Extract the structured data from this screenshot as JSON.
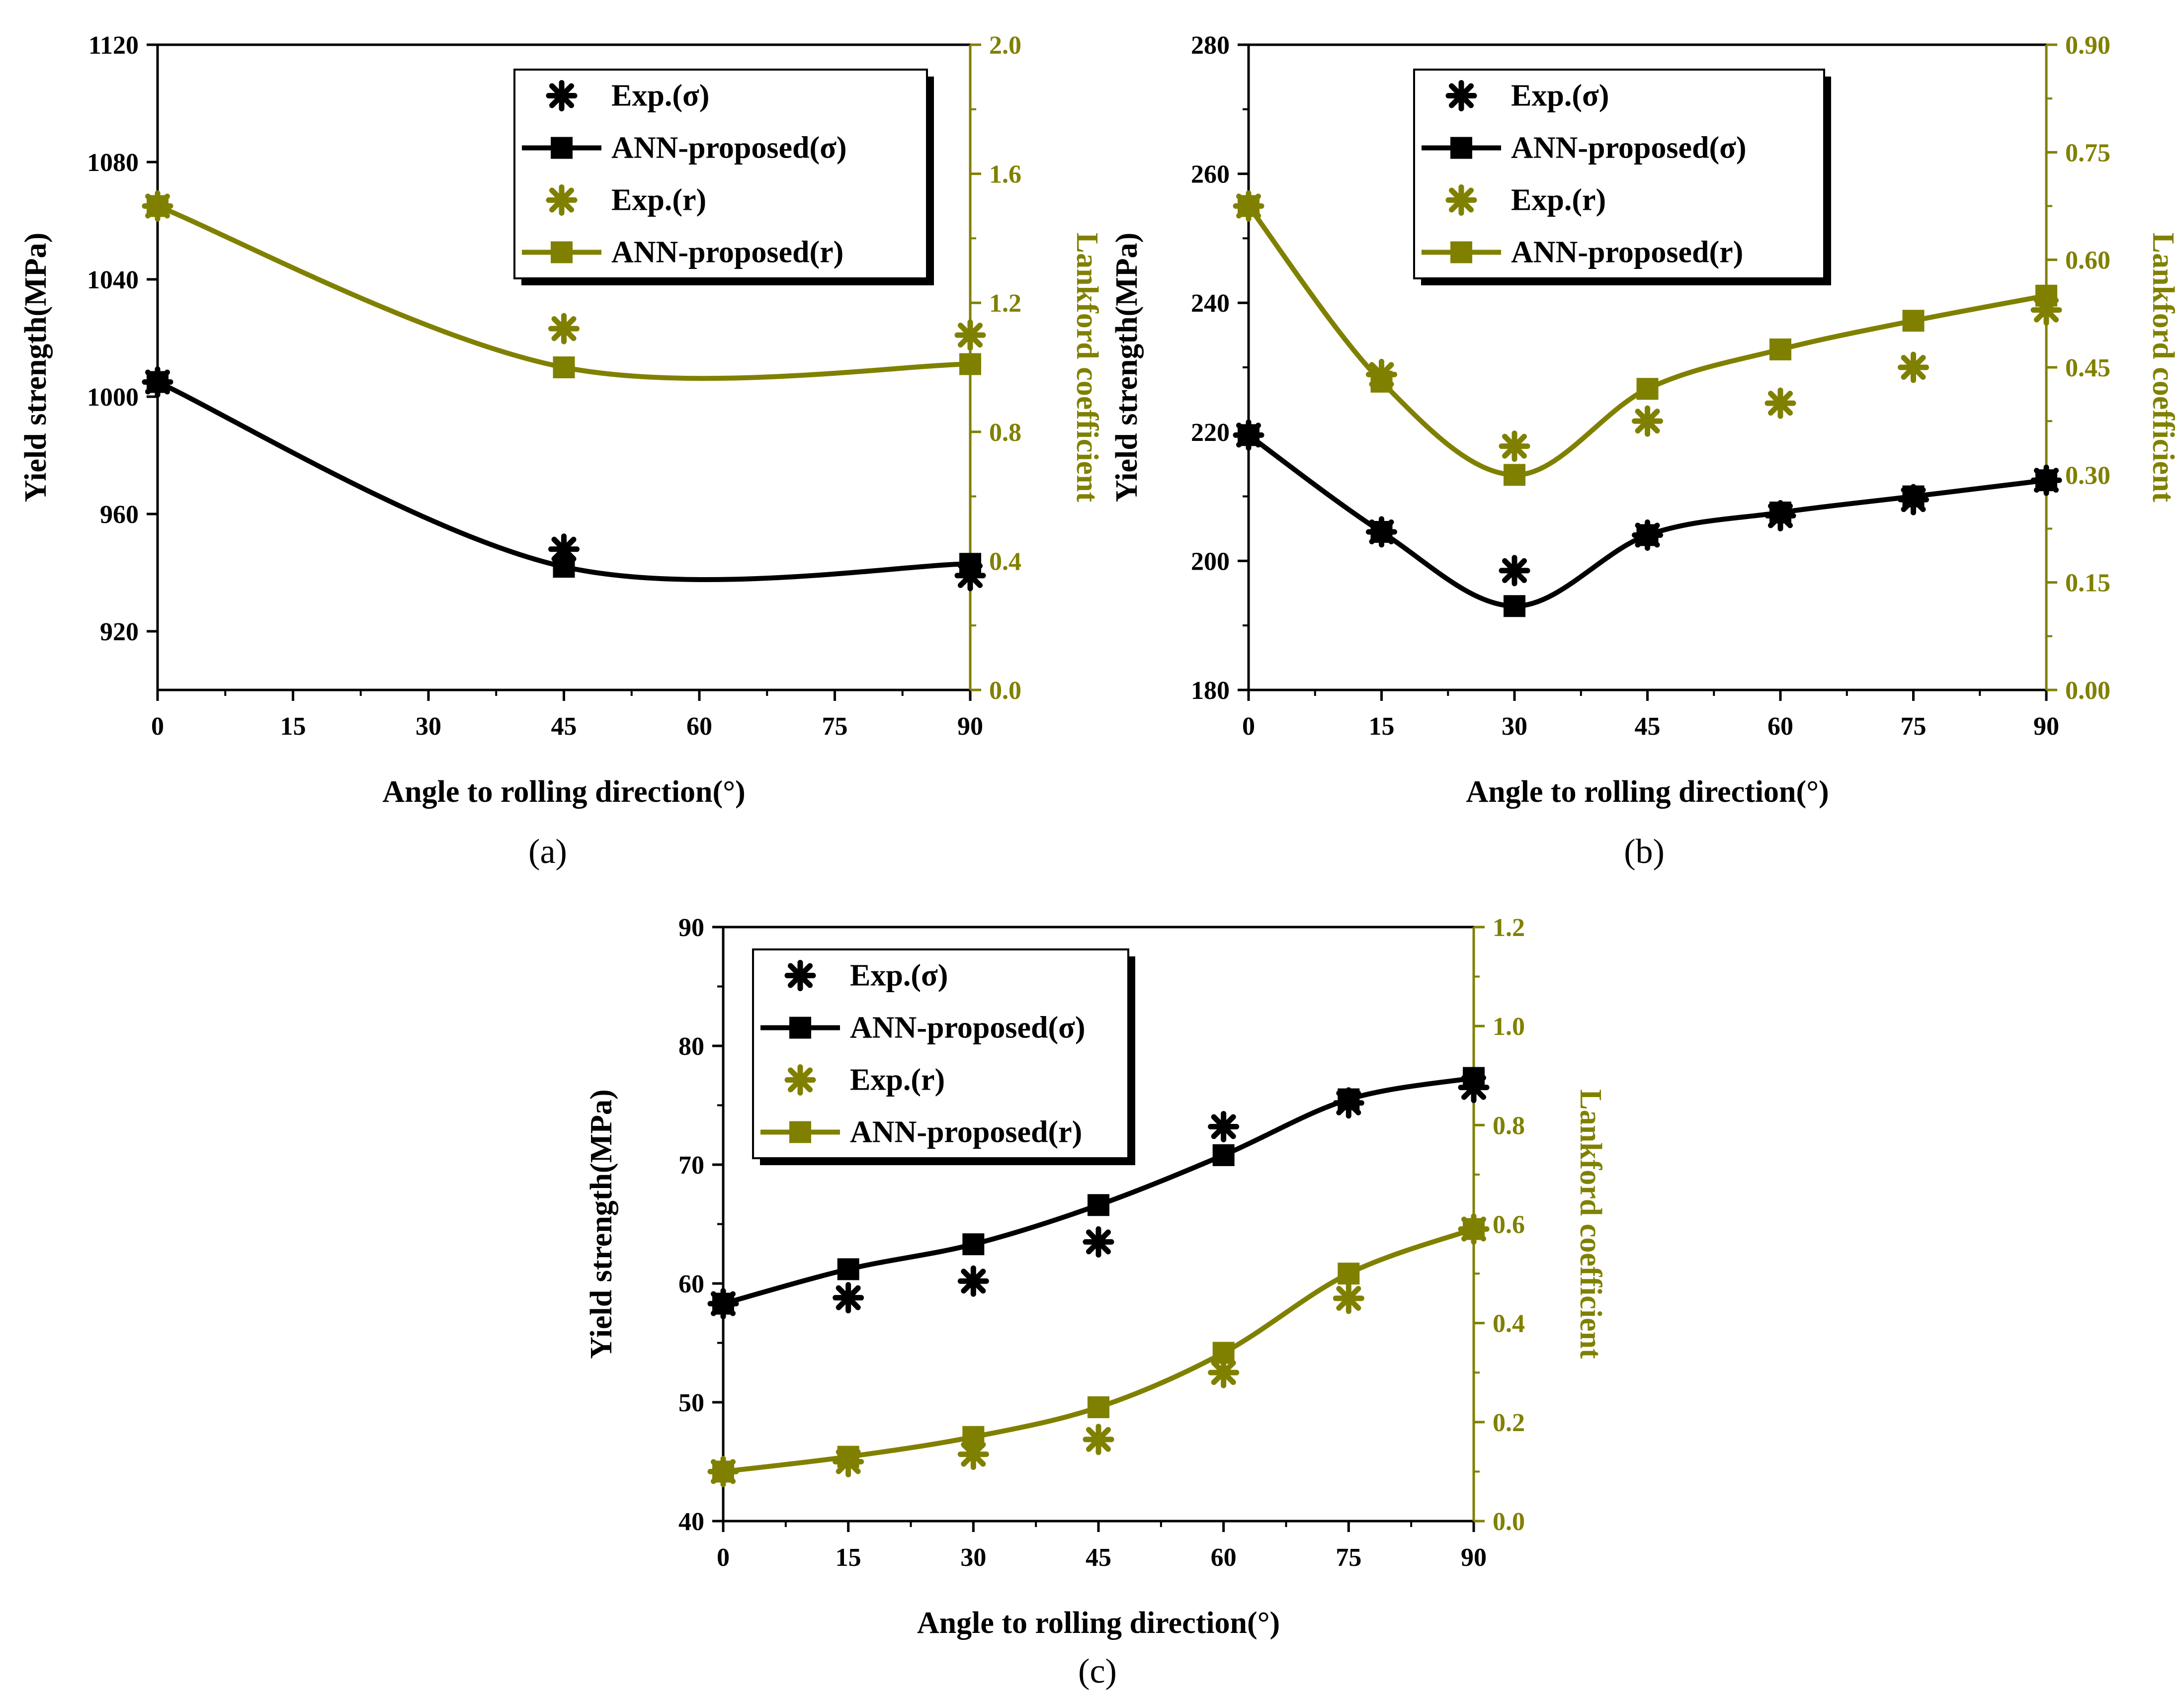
{
  "colors": {
    "sigma": "#000000",
    "r": "#808000"
  },
  "chart_data": [
    {
      "id": "a",
      "type": "line",
      "caption": "(a)",
      "xlabel": "Angle to rolling direction(°)",
      "ylabel": "Yield strength(MPa)",
      "y2label": "Lankford coefficient",
      "xlim": [
        0,
        90
      ],
      "xticks": [
        "0",
        "15",
        "30",
        "45",
        "60",
        "75",
        "90"
      ],
      "ylim": [
        900,
        1120
      ],
      "yticks": [
        "920",
        "960",
        "1000",
        "1040",
        "1080",
        "1120"
      ],
      "y2lim": [
        0,
        2.0
      ],
      "y2ticks": [
        "0.0",
        "0.4",
        "0.8",
        "1.2",
        "1.6",
        "2.0"
      ],
      "legend": [
        "Exp.(σ)",
        "ANN-proposed(σ)",
        "Exp.(r)",
        "ANN-proposed(r)"
      ],
      "legend_position": "top-right",
      "series": [
        {
          "name": "Exp.(σ)",
          "axis": "left",
          "kind": "exp",
          "x": [
            0,
            45,
            90
          ],
          "values": [
            1005,
            948,
            939
          ]
        },
        {
          "name": "ANN-proposed(σ)",
          "axis": "left",
          "kind": "ann",
          "x": [
            0,
            45,
            90
          ],
          "values": [
            1005,
            942,
            943
          ]
        },
        {
          "name": "Exp.(r)",
          "axis": "right",
          "kind": "exp",
          "x": [
            0,
            45,
            90
          ],
          "values": [
            1.5,
            1.12,
            1.1
          ]
        },
        {
          "name": "ANN-proposed(r)",
          "axis": "right",
          "kind": "ann",
          "x": [
            0,
            45,
            90
          ],
          "values": [
            1.5,
            1.0,
            1.01
          ]
        }
      ]
    },
    {
      "id": "b",
      "type": "line",
      "caption": "(b)",
      "xlabel": "Angle to rolling direction(°)",
      "ylabel": "Yield strength(MPa)",
      "y2label": "Lankford coefficient",
      "xlim": [
        0,
        90
      ],
      "xticks": [
        "0",
        "15",
        "30",
        "45",
        "60",
        "75",
        "90"
      ],
      "ylim": [
        180,
        280
      ],
      "yticks": [
        "180",
        "200",
        "220",
        "240",
        "260",
        "280"
      ],
      "y2lim": [
        0,
        0.9
      ],
      "y2ticks": [
        "0.00",
        "0.15",
        "0.30",
        "0.45",
        "0.60",
        "0.75",
        "0.90"
      ],
      "legend": [
        "Exp.(σ)",
        "ANN-proposed(σ)",
        "Exp.(r)",
        "ANN-proposed(r)"
      ],
      "legend_position": "top-right",
      "series": [
        {
          "name": "Exp.(σ)",
          "axis": "left",
          "kind": "exp",
          "x": [
            0,
            15,
            30,
            45,
            60,
            75,
            90
          ],
          "values": [
            219.5,
            204.5,
            198.5,
            204,
            207,
            209.5,
            212.5
          ]
        },
        {
          "name": "ANN-proposed(σ)",
          "axis": "left",
          "kind": "ann",
          "x": [
            0,
            15,
            30,
            45,
            60,
            75,
            90
          ],
          "values": [
            219.5,
            204.5,
            193,
            204,
            207.5,
            210,
            212.5
          ]
        },
        {
          "name": "Exp.(r)",
          "axis": "right",
          "kind": "exp",
          "x": [
            0,
            15,
            30,
            45,
            60,
            75,
            90
          ],
          "values": [
            0.675,
            0.44,
            0.34,
            0.375,
            0.4,
            0.45,
            0.53
          ]
        },
        {
          "name": "ANN-proposed(r)",
          "axis": "right",
          "kind": "ann",
          "x": [
            0,
            15,
            30,
            45,
            60,
            75,
            90
          ],
          "values": [
            0.675,
            0.43,
            0.3,
            0.42,
            0.475,
            0.515,
            0.55
          ]
        }
      ]
    },
    {
      "id": "c",
      "type": "line",
      "caption": "(c)",
      "xlabel": "Angle to rolling direction(°)",
      "ylabel": "Yield strength(MPa)",
      "y2label": "Lankford coefficient",
      "xlim": [
        0,
        90
      ],
      "xticks": [
        "0",
        "15",
        "30",
        "45",
        "60",
        "75",
        "90"
      ],
      "ylim": [
        40,
        90
      ],
      "yticks": [
        "40",
        "50",
        "60",
        "70",
        "80",
        "90"
      ],
      "y2lim": [
        0,
        1.2
      ],
      "y2ticks": [
        "0.0",
        "0.2",
        "0.4",
        "0.6",
        "0.8",
        "1.0",
        "1.2"
      ],
      "legend": [
        "Exp.(σ)",
        "ANN-proposed(σ)",
        "Exp.(r)",
        "ANN-proposed(r)"
      ],
      "legend_position": "top-left",
      "series": [
        {
          "name": "Exp.(σ)",
          "axis": "left",
          "kind": "exp",
          "x": [
            0,
            15,
            30,
            45,
            60,
            75,
            90
          ],
          "values": [
            58.3,
            58.8,
            60.2,
            63.5,
            73.2,
            75.2,
            76.5
          ]
        },
        {
          "name": "ANN-proposed(σ)",
          "axis": "left",
          "kind": "ann",
          "x": [
            0,
            15,
            30,
            45,
            60,
            75,
            90
          ],
          "values": [
            58.3,
            61.2,
            63.3,
            66.6,
            70.8,
            75.5,
            77.3
          ]
        },
        {
          "name": "Exp.(r)",
          "axis": "right",
          "kind": "exp",
          "x": [
            0,
            15,
            30,
            45,
            60,
            75,
            90
          ],
          "values": [
            0.1,
            0.12,
            0.135,
            0.165,
            0.3,
            0.45,
            0.59
          ]
        },
        {
          "name": "ANN-proposed(r)",
          "axis": "right",
          "kind": "ann",
          "x": [
            0,
            15,
            30,
            45,
            60,
            75,
            90
          ],
          "values": [
            0.1,
            0.13,
            0.17,
            0.23,
            0.34,
            0.5,
            0.59
          ]
        }
      ]
    }
  ]
}
